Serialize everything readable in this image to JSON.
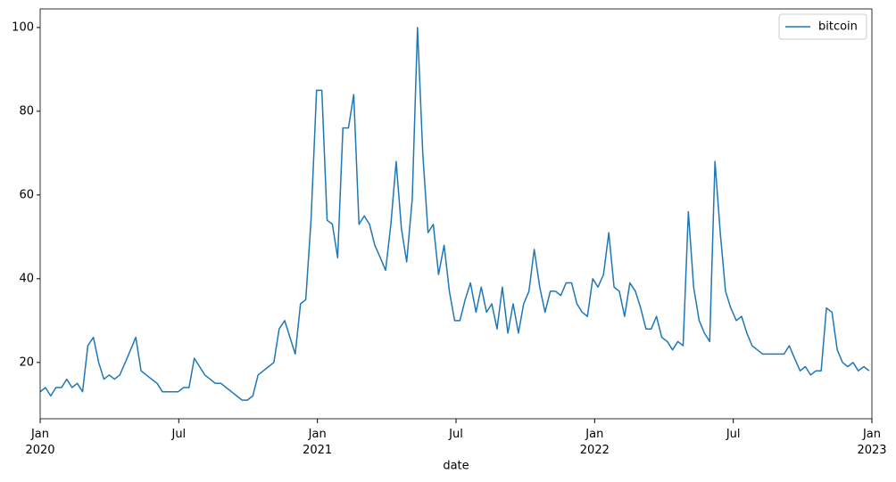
{
  "chart_data": {
    "type": "line",
    "x_label": "date",
    "xlim": [
      2020,
      2023
    ],
    "xticks": [
      {
        "value": 2020,
        "label": "Jan\n2020"
      },
      {
        "value": 2020.5,
        "label": "Jul"
      },
      {
        "value": 2021,
        "label": "Jan\n2021"
      },
      {
        "value": 2021.5,
        "label": "Jul"
      },
      {
        "value": 2022,
        "label": "Jan\n2022"
      },
      {
        "value": 2022.5,
        "label": "Jul"
      },
      {
        "value": 2023,
        "label": "Jan\n2023"
      }
    ],
    "ylim": [
      6.55,
      104.45
    ],
    "yticks": [
      20,
      40,
      60,
      80,
      100
    ],
    "legend": "upper right",
    "x": [
      2020.0,
      2020.019,
      2020.038,
      2020.057,
      2020.077,
      2020.096,
      2020.115,
      2020.134,
      2020.153,
      2020.172,
      2020.192,
      2020.211,
      2020.23,
      2020.249,
      2020.268,
      2020.287,
      2020.307,
      2020.326,
      2020.345,
      2020.364,
      2020.383,
      2020.402,
      2020.422,
      2020.441,
      2020.46,
      2020.479,
      2020.498,
      2020.517,
      2020.537,
      2020.556,
      2020.575,
      2020.594,
      2020.613,
      2020.632,
      2020.652,
      2020.671,
      2020.69,
      2020.709,
      2020.728,
      2020.747,
      2020.767,
      2020.786,
      2020.805,
      2020.824,
      2020.843,
      2020.862,
      2020.882,
      2020.901,
      2020.92,
      2020.939,
      2020.958,
      2020.977,
      2020.997,
      2021.016,
      2021.035,
      2021.054,
      2021.073,
      2021.092,
      2021.112,
      2021.131,
      2021.15,
      2021.169,
      2021.188,
      2021.207,
      2021.227,
      2021.246,
      2021.265,
      2021.284,
      2021.303,
      2021.322,
      2021.342,
      2021.361,
      2021.38,
      2021.399,
      2021.418,
      2021.437,
      2021.457,
      2021.476,
      2021.495,
      2021.514,
      2021.533,
      2021.552,
      2021.572,
      2021.591,
      2021.61,
      2021.629,
      2021.648,
      2021.667,
      2021.687,
      2021.706,
      2021.725,
      2021.744,
      2021.763,
      2021.782,
      2021.802,
      2021.821,
      2021.84,
      2021.859,
      2021.878,
      2021.897,
      2021.917,
      2021.936,
      2021.955,
      2021.974,
      2021.993,
      2022.012,
      2022.032,
      2022.051,
      2022.07,
      2022.089,
      2022.108,
      2022.127,
      2022.147,
      2022.166,
      2022.185,
      2022.204,
      2022.223,
      2022.242,
      2022.262,
      2022.281,
      2022.3,
      2022.319,
      2022.338,
      2022.357,
      2022.377,
      2022.396,
      2022.415,
      2022.434,
      2022.453,
      2022.472,
      2022.491,
      2022.511,
      2022.53,
      2022.549,
      2022.568,
      2022.587,
      2022.606,
      2022.626,
      2022.645,
      2022.664,
      2022.683,
      2022.702,
      2022.721,
      2022.741,
      2022.76,
      2022.779,
      2022.798,
      2022.817,
      2022.836,
      2022.856,
      2022.875,
      2022.894,
      2022.913,
      2022.932,
      2022.951,
      2022.971,
      2022.99
    ],
    "series": [
      {
        "name": "bitcoin",
        "color": "#1f77b4",
        "values": [
          13,
          14,
          12,
          14,
          14,
          16,
          14,
          15,
          13,
          24,
          26,
          20,
          16,
          17,
          16,
          17,
          20,
          23,
          26,
          18,
          17,
          16,
          15,
          13,
          13,
          13,
          13,
          14,
          14,
          21,
          19,
          17,
          16,
          15,
          15,
          14,
          13,
          12,
          11,
          11,
          12,
          17,
          18,
          19,
          20,
          28,
          30,
          26,
          22,
          34,
          35,
          54,
          85,
          85,
          54,
          53,
          45,
          76,
          76,
          84,
          53,
          55,
          53,
          48,
          45,
          42,
          53,
          68,
          52,
          44,
          59,
          100,
          70,
          51,
          53,
          41,
          48,
          37,
          30,
          30,
          35,
          39,
          32,
          38,
          32,
          34,
          28,
          38,
          27,
          34,
          27,
          34,
          37,
          47,
          38,
          32,
          37,
          37,
          36,
          39,
          39,
          34,
          32,
          31,
          40,
          38,
          41,
          51,
          38,
          37,
          31,
          39,
          37,
          33,
          28,
          28,
          31,
          26,
          25,
          23,
          25,
          24,
          56,
          38,
          30,
          27,
          25,
          68,
          51,
          37,
          33,
          30,
          31,
          27,
          24,
          23,
          22,
          22,
          22,
          22,
          22,
          24,
          21,
          18,
          19,
          17,
          18,
          18,
          33,
          32,
          23,
          20,
          19,
          20,
          18,
          19,
          18
        ]
      }
    ]
  }
}
